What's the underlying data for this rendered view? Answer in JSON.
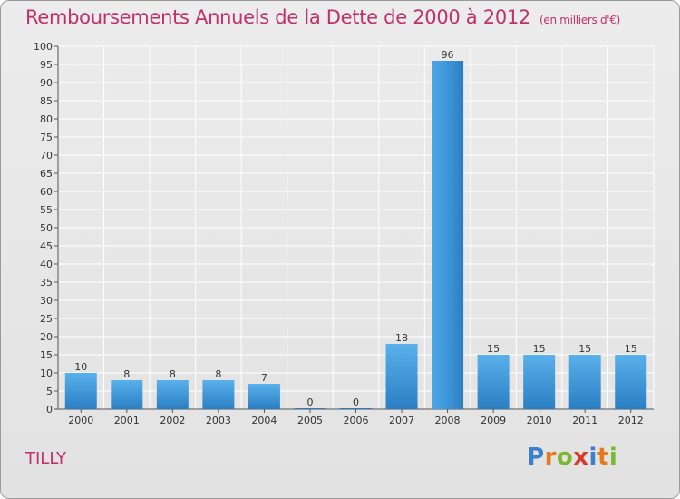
{
  "header": {
    "title": "Remboursements Annuels de la Dette de 2000 à 2012",
    "unit": "(en milliers d'€)"
  },
  "footer": {
    "commune": "TILLY",
    "logo_letters": [
      "P",
      "r",
      "o",
      "x",
      "i",
      "t",
      "i"
    ],
    "logo_colors": [
      "#3a7fd0",
      "#e8781e",
      "#7ab82e",
      "#d83a2a",
      "#3a7fd0",
      "#e8781e",
      "#7ab82e"
    ]
  },
  "chart_data": {
    "type": "bar",
    "title": "Remboursements Annuels de la Dette de 2000 à 2012",
    "categories": [
      "2000",
      "2001",
      "2002",
      "2003",
      "2004",
      "2005",
      "2006",
      "2007",
      "2008",
      "2009",
      "2010",
      "2011",
      "2012"
    ],
    "values": [
      10,
      8,
      8,
      8,
      7,
      0,
      0,
      18,
      96,
      15,
      15,
      15,
      15
    ],
    "ylim": [
      0,
      100
    ],
    "yticks": [
      0,
      5,
      10,
      15,
      20,
      25,
      30,
      35,
      40,
      45,
      50,
      55,
      60,
      65,
      70,
      75,
      80,
      85,
      90,
      95,
      100
    ],
    "grid": true,
    "bar_color": "#4a9fe0",
    "bar_color_dark": "#2a7fc4",
    "text_color": "#c0306a"
  }
}
